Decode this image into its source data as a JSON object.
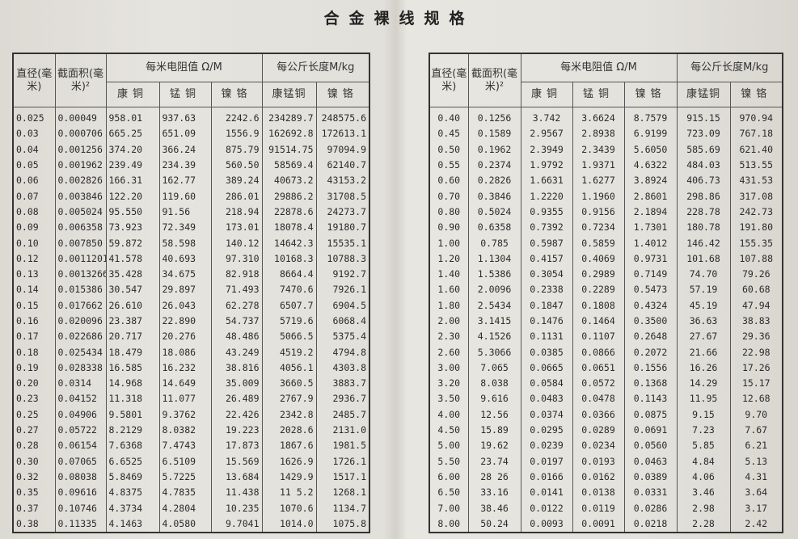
{
  "title": "合金裸线规格",
  "headers": {
    "diameter": "直径(毫米)",
    "area": "截面积(毫米)²",
    "resistance_group": "每米电阻值 Ω/M",
    "length_group": "每公斤长度M/kg",
    "kangtong": "康铜",
    "mengtong": "锰铜",
    "niege": "镍铬",
    "kangmengtong": "康锰铜",
    "niege2": "镍铬"
  },
  "left_rows": [
    [
      "0.025",
      "0.00049",
      "958.01",
      "937.63",
      "2242.6",
      "234289.7",
      "248575.6"
    ],
    [
      "0.03",
      "0.000706",
      "665.25",
      "651.09",
      "1556.9",
      "162692.8",
      "172613.1"
    ],
    [
      "0.04",
      "0.001256",
      "374.20",
      "366.24",
      "875.79",
      "91514.75",
      "97094.9"
    ],
    [
      "0.05",
      "0.001962",
      "239.49",
      "234.39",
      "560.50",
      "58569.4",
      "62140.7"
    ],
    [
      "0.06",
      "0.002826",
      "166.31",
      "162.77",
      "389.24",
      "40673.2",
      "43153.2"
    ],
    [
      "0.07",
      "0.003846",
      "122.20",
      "119.60",
      "286.01",
      "29886.2",
      "31708.5"
    ],
    [
      "0.08",
      "0.005024",
      "95.550",
      "91.56",
      "218.94",
      "22878.6",
      "24273.7"
    ],
    [
      "0.09",
      "0.006358",
      "73.923",
      "72.349",
      "173.01",
      "18078.4",
      "19180.7"
    ],
    [
      "0.10",
      "0.007850",
      "59.872",
      "58.598",
      "140.12",
      "14642.3",
      "15535.1"
    ],
    [
      "0.12",
      "0.0011201",
      "41.578",
      "40.693",
      "97.310",
      "10168.3",
      "10788.3"
    ],
    [
      "0.13",
      "0.0013266",
      "35.428",
      "34.675",
      "82.918",
      "8664.4",
      "9192.7"
    ],
    [
      "0.14",
      "0.015386",
      "30.547",
      "29.897",
      "71.493",
      "7470.6",
      "7926.1"
    ],
    [
      "0.15",
      "0.017662",
      "26.610",
      "26.043",
      "62.278",
      "6507.7",
      "6904.5"
    ],
    [
      "0.16",
      "0.020096",
      "23.387",
      "22.890",
      "54.737",
      "5719.6",
      "6068.4"
    ],
    [
      "0.17",
      "0.022686",
      "20.717",
      "20.276",
      "48.486",
      "5066.5",
      "5375.4"
    ],
    [
      "0.18",
      "0.025434",
      "18.479",
      "18.086",
      "43.249",
      "4519.2",
      "4794.8"
    ],
    [
      "0.19",
      "0.028338",
      "16.585",
      "16.232",
      "38.816",
      "4056.1",
      "4303.8"
    ],
    [
      "0.20",
      "0.0314",
      "14.968",
      "14.649",
      "35.009",
      "3660.5",
      "3883.7"
    ],
    [
      "0.23",
      "0.04152",
      "11.318",
      "11.077",
      "26.489",
      "2767.9",
      "2936.7"
    ],
    [
      "0.25",
      "0.04906",
      "9.5801",
      "9.3762",
      "22.426",
      "2342.8",
      "2485.7"
    ],
    [
      "0.27",
      "0.05722",
      "8.2129",
      "8.0382",
      "19.223",
      "2028.6",
      "2131.0"
    ],
    [
      "0.28",
      "0.06154",
      "7.6368",
      "7.4743",
      "17.873",
      "1867.6",
      "1981.5"
    ],
    [
      "0.30",
      "0.07065",
      "6.6525",
      "6.5109",
      "15.569",
      "1626.9",
      "1726.1"
    ],
    [
      "0.32",
      "0.08038",
      "5.8469",
      "5.7225",
      "13.684",
      "1429.9",
      "1517.1"
    ],
    [
      "0.35",
      "0.09616",
      "4.8375",
      "4.7835",
      "11.438",
      "11 5.2",
      "1268.1"
    ],
    [
      "0.37",
      "0.10746",
      "4.3734",
      "4.2804",
      "10.235",
      "1070.6",
      "1134.7"
    ],
    [
      "0.38",
      "0.11335",
      "4.1463",
      "4.0580",
      "9.7041",
      "1014.0",
      "1075.8"
    ]
  ],
  "right_rows": [
    [
      "0.40",
      "0.1256",
      "3.742",
      "3.6624",
      "8.7579",
      "915.15",
      "970.94"
    ],
    [
      "0.45",
      "0.1589",
      "2.9567",
      "2.8938",
      "6.9199",
      "723.09",
      "767.18"
    ],
    [
      "0.50",
      "0.1962",
      "2.3949",
      "2.3439",
      "5.6050",
      "585.69",
      "621.40"
    ],
    [
      "0.55",
      "0.2374",
      "1.9792",
      "1.9371",
      "4.6322",
      "484.03",
      "513.55"
    ],
    [
      "0.60",
      "0.2826",
      "1.6631",
      "1.6277",
      "3.8924",
      "406.73",
      "431.53"
    ],
    [
      "0.70",
      "0.3846",
      "1.2220",
      "1.1960",
      "2.8601",
      "298.86",
      "317.08"
    ],
    [
      "0.80",
      "0.5024",
      "0.9355",
      "0.9156",
      "2.1894",
      "228.78",
      "242.73"
    ],
    [
      "0.90",
      "0.6358",
      "0.7392",
      "0.7234",
      "1.7301",
      "180.78",
      "191.80"
    ],
    [
      "1.00",
      "0.785",
      "0.5987",
      "0.5859",
      "1.4012",
      "146.42",
      "155.35"
    ],
    [
      "1.20",
      "1.1304",
      "0.4157",
      "0.4069",
      "0.9731",
      "101.68",
      "107.88"
    ],
    [
      "1.40",
      "1.5386",
      "0.3054",
      "0.2989",
      "0.7149",
      "74.70",
      "79.26"
    ],
    [
      "1.60",
      "2.0096",
      "0.2338",
      "0.2289",
      "0.5473",
      "57.19",
      "60.68"
    ],
    [
      "1.80",
      "2.5434",
      "0.1847",
      "0.1808",
      "0.4324",
      "45.19",
      "47.94"
    ],
    [
      "2.00",
      "3.1415",
      "0.1476",
      "0.1464",
      "0.3500",
      "36.63",
      "38.83"
    ],
    [
      "2.30",
      "4.1526",
      "0.1131",
      "0.1107",
      "0.2648",
      "27.67",
      "29.36"
    ],
    [
      "2.60",
      "5.3066",
      "0.0385",
      "0.0866",
      "0.2072",
      "21.66",
      "22.98"
    ],
    [
      "3.00",
      "7.065",
      "0.0665",
      "0.0651",
      "0.1556",
      "16.26",
      "17.26"
    ],
    [
      "3.20",
      "8.038",
      "0.0584",
      "0.0572",
      "0.1368",
      "14.29",
      "15.17"
    ],
    [
      "3.50",
      "9.616",
      "0.0483",
      "0.0478",
      "0.1143",
      "11.95",
      "12.68"
    ],
    [
      "4.00",
      "12.56",
      "0.0374",
      "0.0366",
      "0.0875",
      "9.15",
      "9.70"
    ],
    [
      "4.50",
      "15.89",
      "0.0295",
      "0.0289",
      "0.0691",
      "7.23",
      "7.67"
    ],
    [
      "5.00",
      "19.62",
      "0.0239",
      "0.0234",
      "0.0560",
      "5.85",
      "6.21"
    ],
    [
      "5.50",
      "23.74",
      "0.0197",
      "0.0193",
      "0.0463",
      "4.84",
      "5.13"
    ],
    [
      "6.00",
      "28 26",
      "0.0166",
      "0.0162",
      "0.0389",
      "4.06",
      "4.31"
    ],
    [
      "6.50",
      "33.16",
      "0.0141",
      "0.0138",
      "0.0331",
      "3.46",
      "3.64"
    ],
    [
      "7.00",
      "38.46",
      "0.0122",
      "0.0119",
      "0.0286",
      "2.98",
      "3.17"
    ],
    [
      "8.00",
      "50.24",
      "0.0093",
      "0.0091",
      "0.0218",
      "2.28",
      "2.42"
    ]
  ]
}
